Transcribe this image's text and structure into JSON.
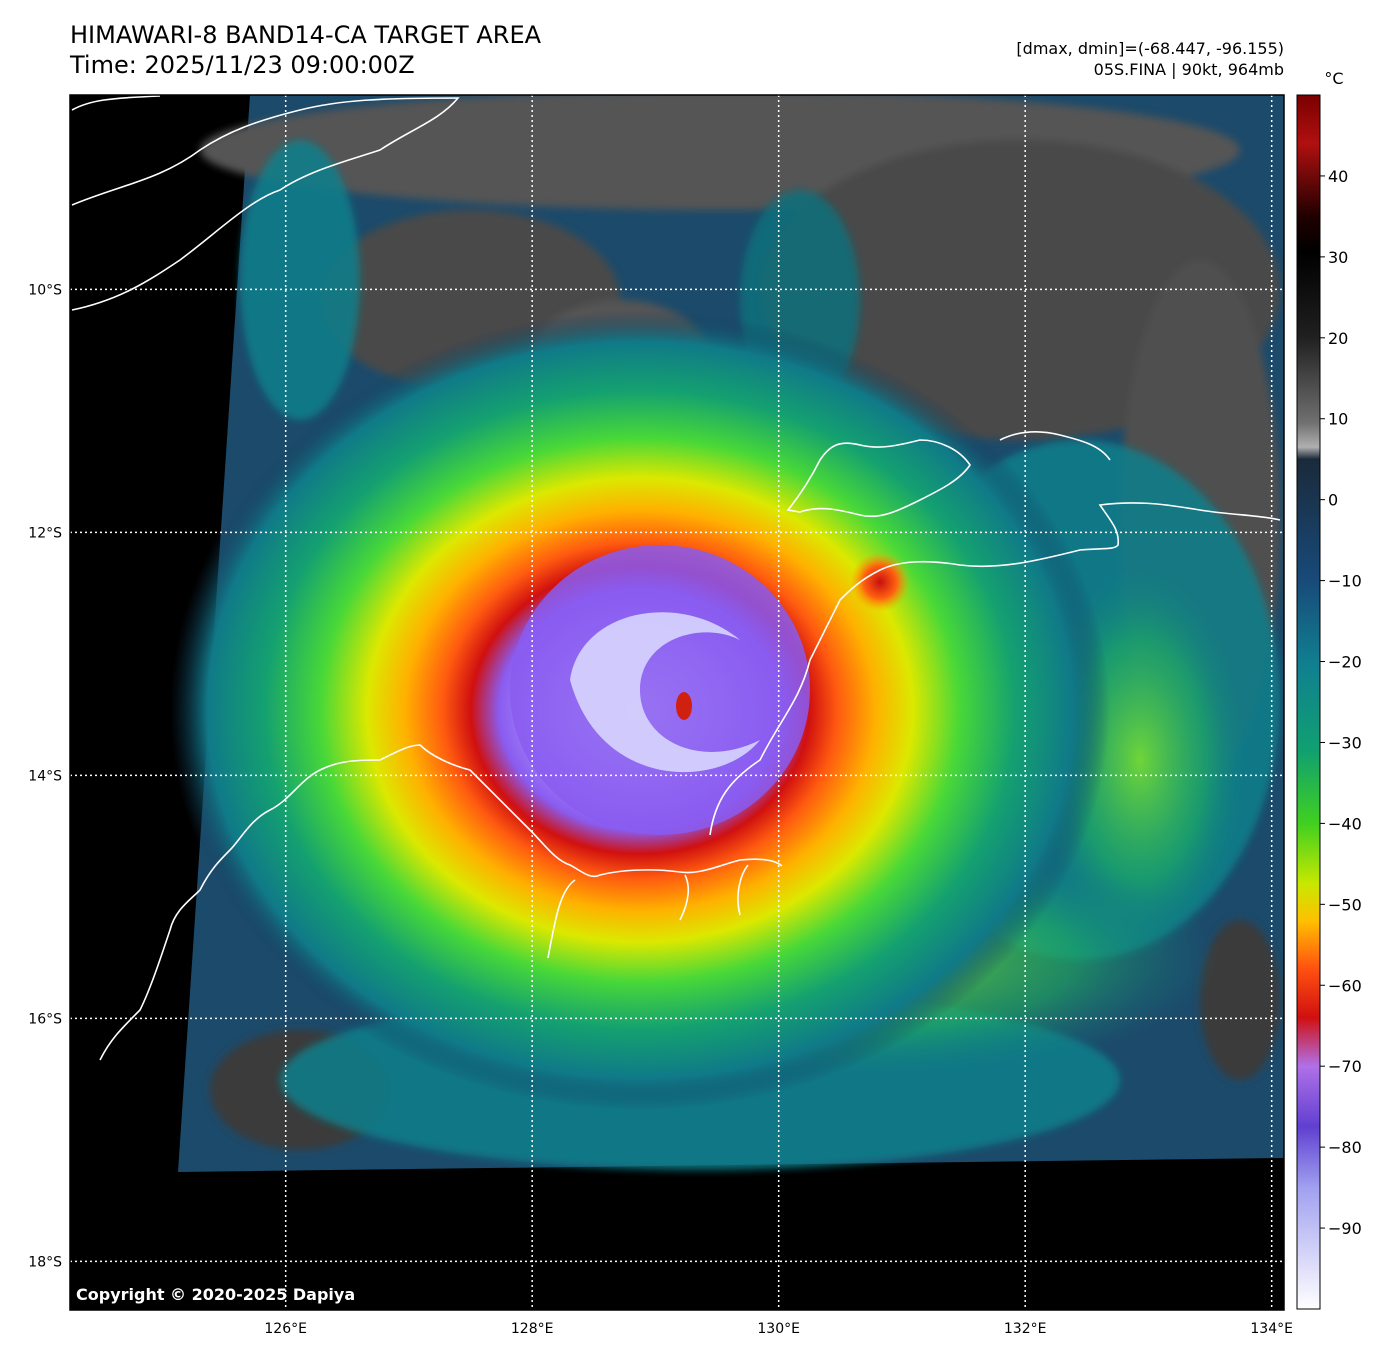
{
  "header": {
    "title_line1": "HIMAWARI-8 BAND14-CA TARGET AREA",
    "title_line2": "Time: 2025/11/23 09:00:00Z",
    "meta_line1": "[dmax, dmin]=(-68.447, -96.155)",
    "meta_line2": "05S.FINA | 90kt, 964mb"
  },
  "map": {
    "lon_range": [
      124.25,
      134.1
    ],
    "lat_range": [
      -18.4,
      -8.4
    ],
    "lon_ticks": [
      {
        "value": 126,
        "label": "126°E"
      },
      {
        "value": 128,
        "label": "128°E"
      },
      {
        "value": 130,
        "label": "130°E"
      },
      {
        "value": 132,
        "label": "132°E"
      },
      {
        "value": 134,
        "label": "134°E"
      }
    ],
    "lat_ticks": [
      {
        "value": -10,
        "label": "10°S"
      },
      {
        "value": -12,
        "label": "12°S"
      },
      {
        "value": -14,
        "label": "14°S"
      },
      {
        "value": -16,
        "label": "16°S"
      },
      {
        "value": -18,
        "label": "18°S"
      }
    ],
    "grid": "dotted white",
    "storm_center": {
      "lon": 129.2,
      "lat": -13.5
    },
    "copyright": "Copyright © 2020-2025 Dapiya"
  },
  "colorbar": {
    "unit": "°C",
    "range": [
      -100,
      50
    ],
    "ticks": [
      {
        "value": 40,
        "label": "40"
      },
      {
        "value": 30,
        "label": "30"
      },
      {
        "value": 20,
        "label": "20"
      },
      {
        "value": 10,
        "label": "10"
      },
      {
        "value": 0,
        "label": "0"
      },
      {
        "value": -10,
        "label": "−10"
      },
      {
        "value": -20,
        "label": "−20"
      },
      {
        "value": -30,
        "label": "−30"
      },
      {
        "value": -40,
        "label": "−40"
      },
      {
        "value": -50,
        "label": "−50"
      },
      {
        "value": -60,
        "label": "−60"
      },
      {
        "value": -70,
        "label": "−70"
      },
      {
        "value": -80,
        "label": "−80"
      },
      {
        "value": -90,
        "label": "−90"
      }
    ]
  },
  "colors": {
    "cold_top": "#f4f4ff",
    "violet": "#8a5cf0",
    "red": "#e02010",
    "orange": "#ff8000",
    "yellow": "#e8e800",
    "green": "#30c830",
    "teal": "#10808c",
    "navy": "#183c64",
    "gray": "#5a5a5a",
    "warm_black": "#000000",
    "coastline": "#ffffff"
  }
}
